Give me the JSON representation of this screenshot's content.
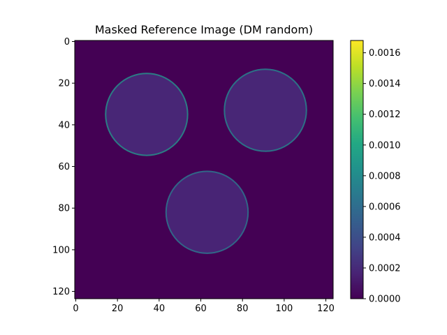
{
  "chart_data": {
    "type": "heatmap",
    "title": "Masked Reference Image (DM random)",
    "xlabel": "",
    "ylabel": "",
    "image_size": [
      124,
      124
    ],
    "xlim": [
      -0.5,
      123.5
    ],
    "ylim": [
      123.5,
      -0.5
    ],
    "x_ticks": [
      0,
      20,
      40,
      60,
      80,
      100,
      120
    ],
    "y_ticks": [
      0,
      20,
      40,
      60,
      80,
      100,
      120
    ],
    "colormap": "viridis",
    "colorbar": {
      "vmin": 0.0,
      "vmax": 0.00168,
      "ticks": [
        0.0,
        0.0002,
        0.0004,
        0.0006,
        0.0008,
        0.001,
        0.0012,
        0.0014,
        0.0016
      ],
      "tick_labels": [
        "0.0000",
        "0.0002",
        "0.0004",
        "0.0006",
        "0.0008",
        "0.0010",
        "0.0012",
        "0.0014",
        "0.0016"
      ]
    },
    "background_value": 0.0,
    "regions": [
      {
        "shape": "circle",
        "center_x": 34,
        "center_y": 35,
        "radius": 20,
        "interior_value": 0.00018,
        "rim_value": 0.0009
      },
      {
        "shape": "circle",
        "center_x": 91,
        "center_y": 33,
        "radius": 20,
        "interior_value": 0.00018,
        "rim_value": 0.0008
      },
      {
        "shape": "circle",
        "center_x": 63,
        "center_y": 82,
        "radius": 20,
        "interior_value": 0.00017,
        "rim_value": 0.0007
      }
    ]
  }
}
